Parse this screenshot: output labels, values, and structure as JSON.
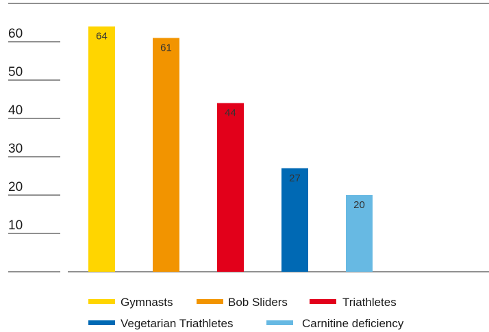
{
  "chart_data": {
    "type": "bar",
    "title": "",
    "xlabel": "",
    "ylabel": "",
    "ylim": [
      0,
      70
    ],
    "yticks": [
      10,
      20,
      30,
      40,
      50,
      60,
      70
    ],
    "categories": [
      "Gymnasts",
      "Bob Sliders",
      "Triathletes",
      "Vegetarian Triathletes",
      "Carnitine deficiency"
    ],
    "values": [
      64,
      61,
      44,
      27,
      20
    ],
    "data_labels": [
      "64",
      "61",
      "44",
      "27",
      "20"
    ],
    "colors": [
      "#FFD500",
      "#F29400",
      "#E2001A",
      "#0069B4",
      "#67B9E3"
    ],
    "grid": false,
    "legend_position": "bottom"
  }
}
